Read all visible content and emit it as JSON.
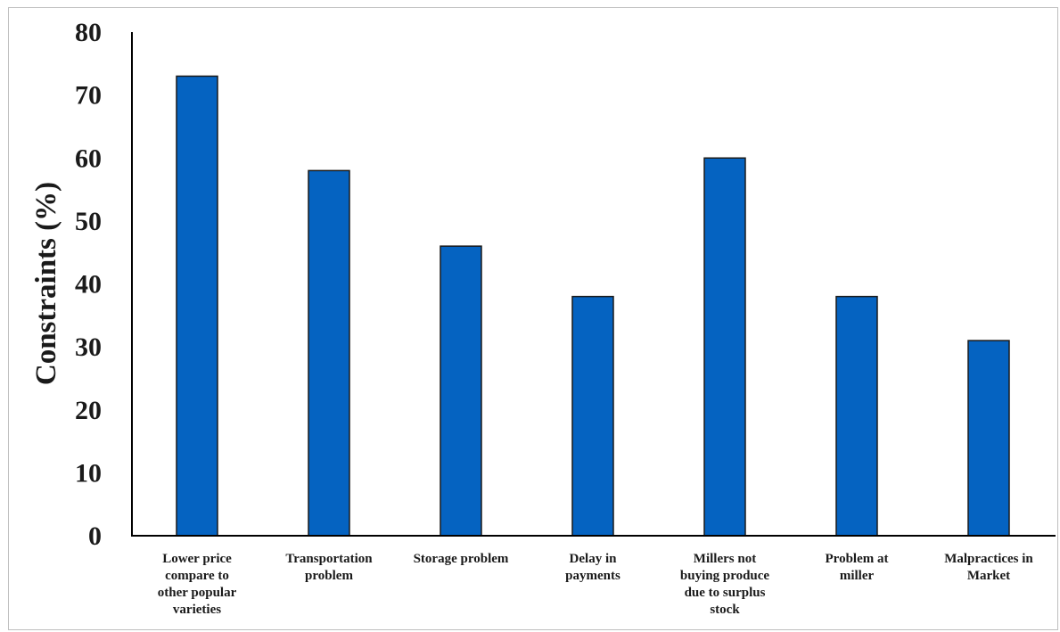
{
  "chart_data": {
    "type": "bar",
    "title": "",
    "xlabel": "",
    "ylabel": "Constraints (%)",
    "ylim": [
      0,
      80
    ],
    "yticks": [
      0,
      10,
      20,
      30,
      40,
      50,
      60,
      70,
      80
    ],
    "grid": false,
    "legend": "none",
    "bar_color": "#0563c1",
    "categories": [
      [
        "Lower price",
        "compare to",
        "other popular",
        "varieties"
      ],
      [
        "Transportation",
        "problem"
      ],
      [
        "Storage problem"
      ],
      [
        "Delay in",
        "payments"
      ],
      [
        "Millers not",
        "buying produce",
        "due to surplus",
        "stock"
      ],
      [
        "Problem at",
        "miller"
      ],
      [
        "Malpractices in",
        "Market"
      ]
    ],
    "values": [
      73,
      58,
      46,
      38,
      60,
      38,
      31
    ]
  }
}
